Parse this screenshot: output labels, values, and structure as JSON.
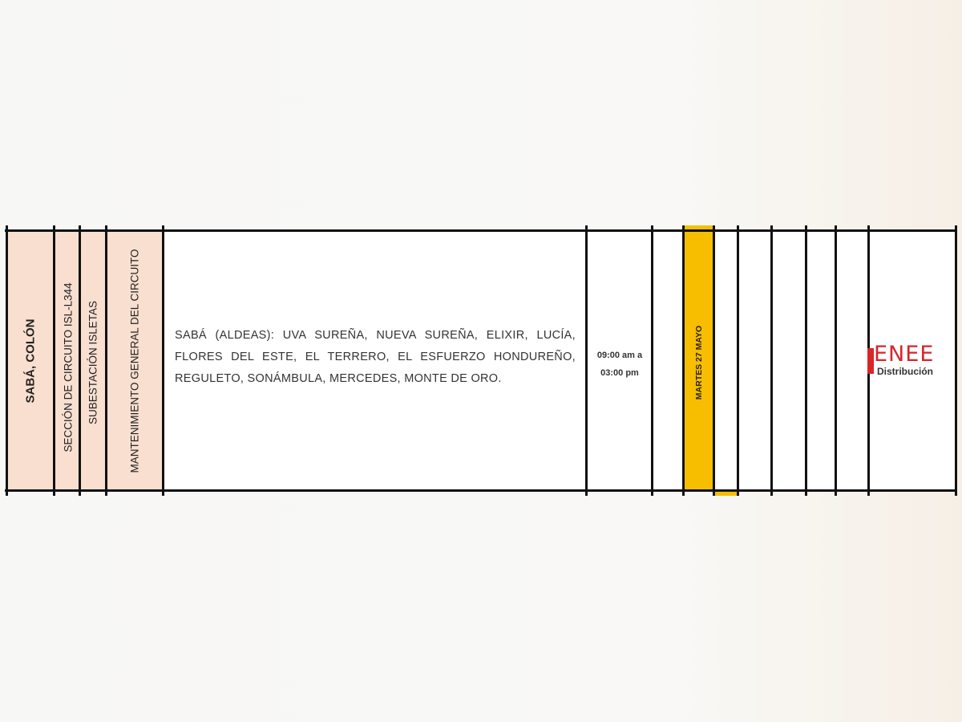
{
  "row": {
    "location": "SABÁ, COLÓN",
    "circuit_section": "SECCIÓN DE CIRCUITO ISL-L344",
    "substation": "SUBESTACIÓN ISLETAS",
    "work": "MANTENIMIENTO GENERAL DEL CIRCUITO",
    "affected_areas": "SABÁ (ALDEAS): UVA SUREÑA, NUEVA SUREÑA, ELIXIR, LUCÍA, FLORES DEL ESTE, EL TERRERO, EL ESFUERZO HONDUREÑO, REGULETO, SONÁMBULA, MERCEDES, MONTE DE ORO.",
    "time_line1": "09:00 am a",
    "time_line2": "03:00 pm",
    "date": "MARTES 27 MAYO"
  },
  "logo": {
    "name": "ENEE",
    "subtitle": "Distribución"
  },
  "colors": {
    "label_bg": "#f9dfd0",
    "date_highlight": "#f7be00",
    "brand_red": "#d7262b"
  }
}
